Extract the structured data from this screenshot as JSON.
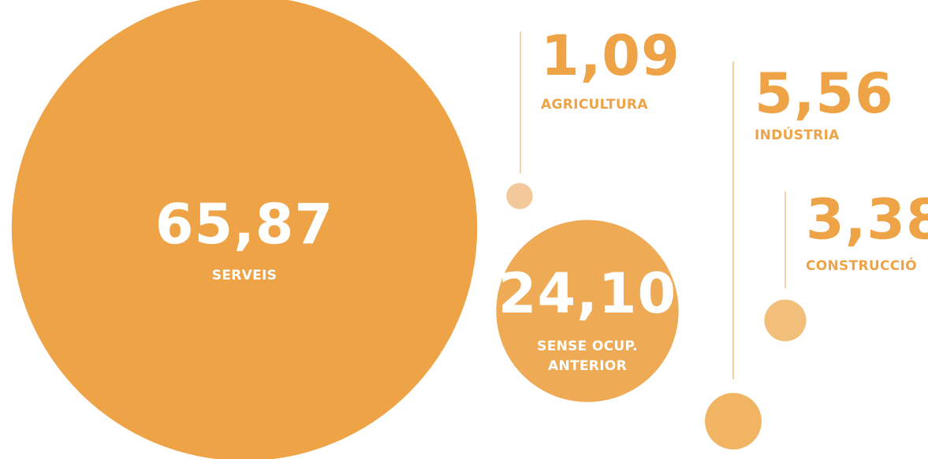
{
  "chart_data": {
    "type": "bubble",
    "categories": [
      "SERVEIS",
      "SENSE OCUP. ANTERIOR",
      "AGRICULTURA",
      "INDÚSTRIA",
      "CONSTRUCCIÓ"
    ],
    "values": [
      65.87,
      24.1,
      1.09,
      5.56,
      3.38
    ],
    "value_labels": [
      "65,87",
      "24,10",
      "1,09",
      "5,56",
      "3,38"
    ],
    "colors": [
      "#eda346",
      "#eeaa55",
      "#f3c89a",
      "#f0b462",
      "#f2bf7b"
    ]
  }
}
